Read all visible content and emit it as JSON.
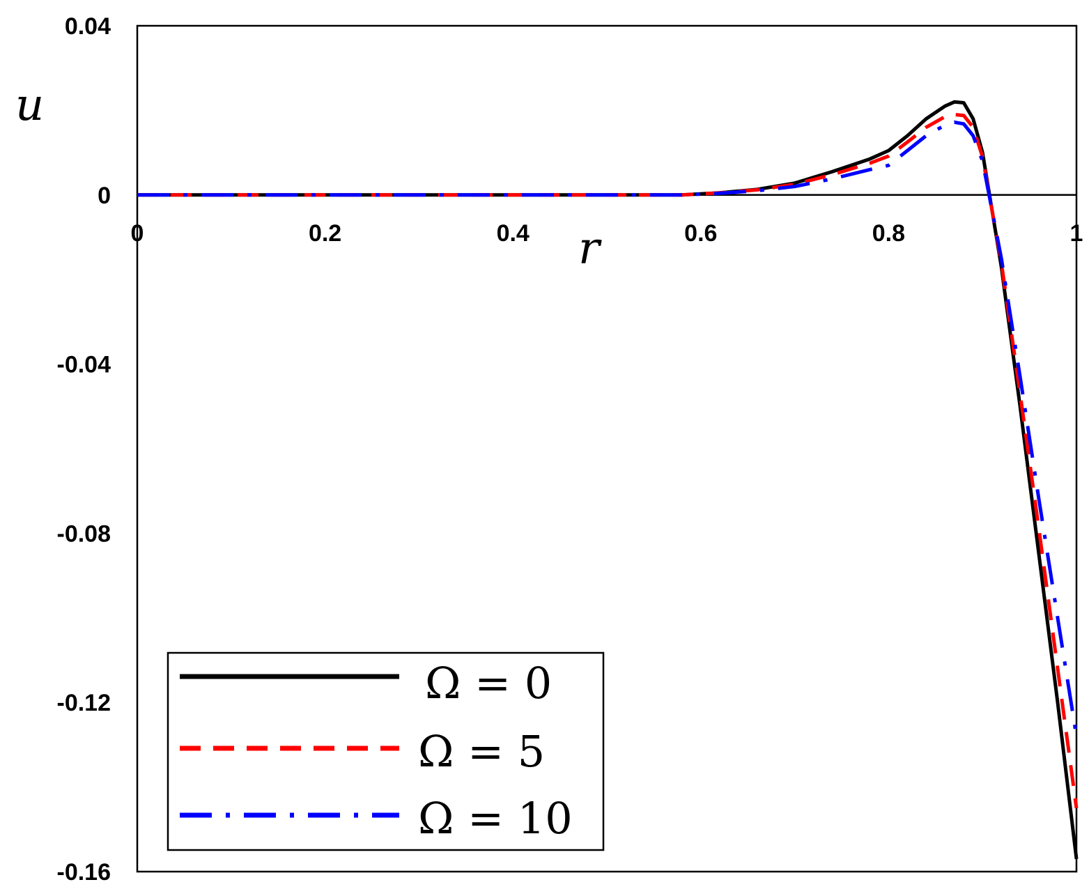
{
  "chart_data": {
    "type": "line",
    "title": "",
    "xlabel": "r",
    "ylabel": "u",
    "xlim": [
      0,
      1
    ],
    "ylim": [
      -0.16,
      0.04
    ],
    "xticks": [
      {
        "value": 0,
        "label": "0"
      },
      {
        "value": 0.2,
        "label": "0.2"
      },
      {
        "value": 0.4,
        "label": "0.4"
      },
      {
        "value": 0.6,
        "label": "0.6"
      },
      {
        "value": 0.8,
        "label": "0.8"
      },
      {
        "value": 1,
        "label": "1"
      }
    ],
    "yticks": [
      {
        "value": 0.04,
        "label": "0.04"
      },
      {
        "value": 0,
        "label": "0"
      },
      {
        "value": -0.04,
        "label": "-0.04"
      },
      {
        "value": -0.08,
        "label": "-0.08"
      },
      {
        "value": -0.12,
        "label": "-0.12"
      },
      {
        "value": -0.16,
        "label": "-0.16"
      }
    ],
    "grid": false,
    "zero_line": true,
    "legend_position": "bottom-left",
    "series": [
      {
        "name": "Ω = 0",
        "color": "#000000",
        "style": "solid",
        "x": [
          0,
          0.1,
          0.2,
          0.3,
          0.4,
          0.5,
          0.58,
          0.62,
          0.66,
          0.7,
          0.74,
          0.78,
          0.8,
          0.82,
          0.84,
          0.86,
          0.87,
          0.88,
          0.89,
          0.9,
          0.92,
          0.94,
          0.96,
          0.98,
          1.0
        ],
        "y": [
          0,
          0,
          0,
          0,
          0,
          0,
          0,
          0.0005,
          0.0013,
          0.0028,
          0.0055,
          0.0085,
          0.0105,
          0.014,
          0.018,
          0.021,
          0.022,
          0.0218,
          0.018,
          0.01,
          -0.017,
          -0.05,
          -0.085,
          -0.12,
          -0.157
        ]
      },
      {
        "name": "Ω = 5",
        "color": "#ff0000",
        "style": "dashed",
        "x": [
          0,
          0.1,
          0.2,
          0.3,
          0.4,
          0.5,
          0.58,
          0.62,
          0.66,
          0.7,
          0.74,
          0.78,
          0.8,
          0.82,
          0.84,
          0.86,
          0.87,
          0.88,
          0.89,
          0.9,
          0.92,
          0.94,
          0.96,
          0.98,
          1.0
        ],
        "y": [
          0,
          0,
          0,
          0,
          0,
          0,
          0,
          0.0005,
          0.0012,
          0.0025,
          0.0048,
          0.0075,
          0.0092,
          0.0125,
          0.016,
          0.0185,
          0.019,
          0.0188,
          0.016,
          0.009,
          -0.016,
          -0.047,
          -0.079,
          -0.112,
          -0.145
        ]
      },
      {
        "name": "Ω = 10",
        "color": "#0000ff",
        "style": "dashdot",
        "x": [
          0,
          0.1,
          0.2,
          0.3,
          0.4,
          0.5,
          0.58,
          0.62,
          0.66,
          0.7,
          0.74,
          0.78,
          0.8,
          0.82,
          0.84,
          0.86,
          0.87,
          0.88,
          0.89,
          0.9,
          0.92,
          0.94,
          0.96,
          0.98,
          1.0
        ],
        "y": [
          0,
          0,
          0,
          0,
          0,
          0,
          0,
          0.0004,
          0.001,
          0.002,
          0.0038,
          0.006,
          0.007,
          0.0105,
          0.014,
          0.0165,
          0.0172,
          0.0168,
          0.014,
          0.008,
          -0.015,
          -0.043,
          -0.072,
          -0.1,
          -0.128
        ]
      }
    ]
  }
}
